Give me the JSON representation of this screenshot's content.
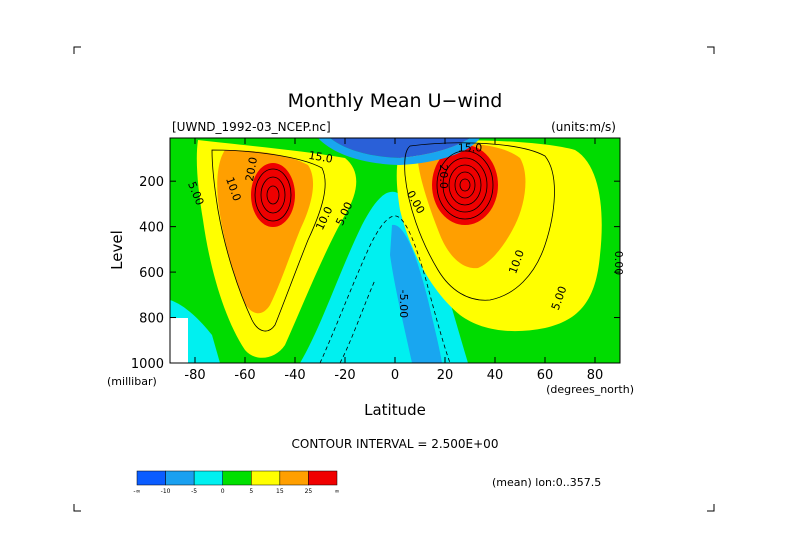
{
  "chart_data": {
    "type": "heatmap",
    "title": "Monthly Mean U−wind",
    "dataset_label": "[UWND_1992-03_NCEP.nc]",
    "units_label": "(units:m/s)",
    "xlabel": "Latitude",
    "x_units": "(degrees_north)",
    "ylabel": "Level",
    "y_units": "(millibar)",
    "xlim": [
      -90,
      90
    ],
    "ylim": [
      1000,
      10
    ],
    "x_ticks": [
      -80,
      -60,
      -40,
      -20,
      0,
      20,
      40,
      60,
      80
    ],
    "y_ticks": [
      200,
      400,
      600,
      800,
      1000
    ],
    "contour_interval_label": "CONTOUR INTERVAL = 2.500E+00",
    "footer_label": "(mean) lon:0..357.5",
    "contour_labels": [
      {
        "text": "5.00",
        "lat": -81,
        "level": 260,
        "angle": 68
      },
      {
        "text": "10.0",
        "lat": -66,
        "level": 240,
        "angle": 70
      },
      {
        "text": "20.0",
        "lat": -56,
        "level": 150,
        "angle": -80
      },
      {
        "text": "15.0",
        "lat": -30,
        "level": 110,
        "angle": 10
      },
      {
        "text": "10.0",
        "lat": -27,
        "level": 370,
        "angle": -65
      },
      {
        "text": "5.00",
        "lat": -19,
        "level": 350,
        "angle": -65
      },
      {
        "text": "15.0",
        "lat": 30,
        "level": 70,
        "angle": 0
      },
      {
        "text": "20.0",
        "lat": 18,
        "level": 180,
        "angle": 90
      },
      {
        "text": "0.00",
        "lat": 7,
        "level": 300,
        "angle": 60
      },
      {
        "text": "-5.00",
        "lat": 2,
        "level": 740,
        "angle": 90
      },
      {
        "text": "10.0",
        "lat": 50,
        "level": 560,
        "angle": -70
      },
      {
        "text": "5.00",
        "lat": 67,
        "level": 720,
        "angle": -70
      },
      {
        "text": "0.00",
        "lat": 88,
        "level": 560,
        "angle": 90
      }
    ],
    "colorbar": {
      "colors": [
        "#0a5cff",
        "#1aa0f0",
        "#00f0f0",
        "#00e000",
        "#ffff00",
        "#ff9f00",
        "#f00000"
      ],
      "tick_labels": [
        "-∞",
        "-10",
        "-5",
        "0",
        "5",
        "15",
        "25",
        "∞"
      ]
    },
    "shading_colors": {
      "deep_neg": "#2a60d8",
      "neg": "#19a6f0",
      "weak_neg": "#00f0f0",
      "zero": "#00dc00",
      "pos": "#ffff00",
      "strong": "#ff9f00",
      "jet": "#ee0000"
    }
  }
}
